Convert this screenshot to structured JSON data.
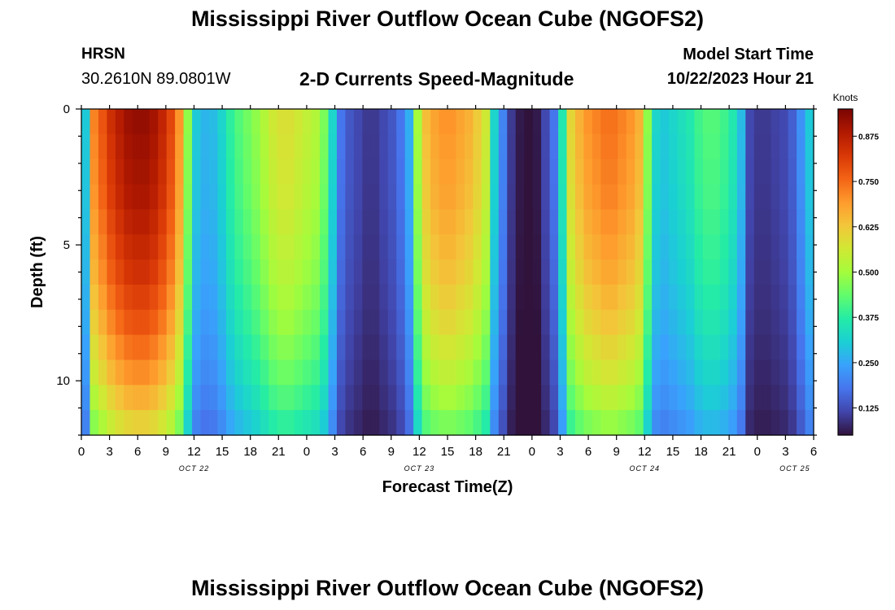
{
  "header": {
    "title": "Mississippi River Outflow Ocean Cube (NGOFS2)",
    "station": "HRSN",
    "coordinates": "30.2610N  89.0801W",
    "subtitle": "2-D Currents Speed-Magnitude",
    "model_start_label": "Model Start Time",
    "model_start_value": "10/22/2023 Hour 21"
  },
  "footer": {
    "title": "Mississippi River Outflow Ocean Cube (NGOFS2)"
  },
  "colors": {
    "colormap": [
      "#30123b",
      "#4145ab",
      "#4675ed",
      "#39a2fc",
      "#1bcfd4",
      "#24eca6",
      "#61fc6c",
      "#a4fc3b",
      "#d1e834",
      "#f3c63a",
      "#fe9b2d",
      "#f36315",
      "#d93806",
      "#b11901",
      "#7a0403"
    ]
  },
  "chart_data": {
    "type": "heatmap",
    "xlabel": "Forecast Time(Z)",
    "ylabel": "Depth (ft)",
    "colorbar_label": "Knots",
    "x_ticks": [
      "0",
      "3",
      "6",
      "9",
      "12",
      "15",
      "18",
      "21",
      "0",
      "3",
      "6",
      "9",
      "12",
      "15",
      "18",
      "21",
      "0",
      "3",
      "6",
      "9",
      "12",
      "15",
      "18",
      "21",
      "0",
      "3",
      "6"
    ],
    "date_labels": [
      {
        "label": "OCT 22",
        "hour_index": 12
      },
      {
        "label": "OCT 23",
        "hour_index": 36
      },
      {
        "label": "OCT 24",
        "hour_index": 60
      },
      {
        "label": "OCT 25",
        "hour_index": 76
      }
    ],
    "x_range_hours": [
      0,
      78
    ],
    "y_ticks": [
      "0",
      "5",
      "10"
    ],
    "y_range_ft": [
      0,
      12
    ],
    "colorbar_ticks": [
      "0.125",
      "0.250",
      "0.375",
      "0.500",
      "0.625",
      "0.750",
      "0.875"
    ],
    "value_range": [
      0.05,
      0.95
    ],
    "surface_speed_knots": [
      0.3,
      0.72,
      0.78,
      0.84,
      0.88,
      0.91,
      0.92,
      0.92,
      0.9,
      0.86,
      0.8,
      0.7,
      0.48,
      0.3,
      0.27,
      0.28,
      0.32,
      0.38,
      0.42,
      0.45,
      0.48,
      0.52,
      0.56,
      0.58,
      0.58,
      0.56,
      0.54,
      0.52,
      0.46,
      0.32,
      0.18,
      0.14,
      0.12,
      0.1,
      0.1,
      0.12,
      0.14,
      0.18,
      0.26,
      0.5,
      0.64,
      0.68,
      0.7,
      0.7,
      0.68,
      0.66,
      0.62,
      0.56,
      0.32,
      0.2,
      0.1,
      0.06,
      0.05,
      0.06,
      0.12,
      0.18,
      0.36,
      0.6,
      0.66,
      0.7,
      0.72,
      0.74,
      0.74,
      0.72,
      0.7,
      0.66,
      0.48,
      0.32,
      0.3,
      0.32,
      0.34,
      0.36,
      0.4,
      0.42,
      0.42,
      0.4,
      0.36,
      0.28,
      0.12,
      0.1,
      0.1,
      0.11,
      0.12,
      0.15,
      0.22,
      0.3
    ],
    "depth_factor": [
      1.0,
      0.99,
      0.98,
      0.97,
      0.95,
      0.93,
      0.91,
      0.88,
      0.85,
      0.81,
      0.77,
      0.72,
      0.66
    ]
  }
}
